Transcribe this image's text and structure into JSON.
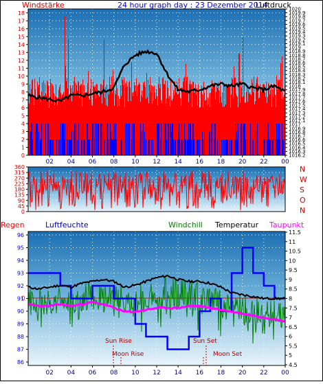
{
  "chart_data": [
    {
      "type": "line",
      "title": "24 hour graph day : 23 Dezember 2014",
      "left_axis_label": "Windstärke",
      "right_axis_label": "Luftdruck",
      "left_ticks": [
        "0",
        "1",
        "2",
        "3",
        "4",
        "5",
        "6",
        "7",
        "8",
        "9",
        "10",
        "11",
        "12",
        "13",
        "14",
        "15",
        "16",
        "17",
        "18"
      ],
      "right_ticks": [
        "1016.2",
        "1016.3",
        "1016.4",
        "1016.5",
        "1016.6",
        "1016.7",
        "1016.8",
        "1016.9",
        "1017",
        "1017.1",
        "1017.2",
        "1017.3",
        "1017.4",
        "1017.5",
        "1017.6",
        "1017.7",
        "1017.8",
        "1017.9",
        "1018",
        "1018.1",
        "1018.2",
        "1018.3",
        "1018.4",
        "1018.5",
        "1018.6",
        "1018.7",
        "1018.8",
        "1018.9",
        "1019",
        "1019.1",
        "1019.2",
        "1019.3",
        "1019.4",
        "1019.5",
        "1019.6",
        "1019.7",
        "1019.8",
        "1019.9",
        "1020"
      ],
      "x_ticks": [
        "02",
        "04",
        "06",
        "08",
        "10",
        "12",
        "14",
        "16",
        "18",
        "20",
        "22",
        "00"
      ],
      "ylim_left": [
        0,
        18.5
      ],
      "ylim_right": [
        1016.2,
        1020
      ],
      "series": [
        {
          "name": "Luftdruck",
          "color": "#000000",
          "axis": "right",
          "x": [
            0,
            1,
            2,
            3,
            4,
            5,
            6,
            7,
            8,
            9,
            10,
            11,
            12,
            13,
            14,
            15,
            16,
            17,
            18,
            19,
            20,
            21,
            22,
            23,
            24
          ],
          "values": [
            1017.75,
            1017.7,
            1017.65,
            1017.6,
            1017.75,
            1017.75,
            1017.8,
            1017.85,
            1017.95,
            1018.55,
            1018.8,
            1018.9,
            1018.85,
            1018.3,
            1017.9,
            1017.85,
            1017.9,
            1018.0,
            1018.05,
            1018.0,
            1018.05,
            1017.95,
            1017.9,
            1018.0,
            1017.85
          ]
        },
        {
          "name": "Windstärke Mittel",
          "color": "#0000ff",
          "axis": "left",
          "values": [
            3,
            4,
            2,
            4,
            3,
            2,
            4,
            3,
            2,
            4,
            3,
            2,
            4,
            3,
            4,
            2,
            3,
            4,
            2,
            3,
            4,
            3,
            2,
            4
          ]
        },
        {
          "name": "Windstärke Böen",
          "color": "#ff0000",
          "axis": "left",
          "values": [
            9,
            14,
            9,
            18,
            9,
            13,
            9,
            17,
            9,
            13,
            9,
            18,
            9,
            9,
            13,
            9,
            15,
            9,
            9,
            13,
            17,
            9,
            9,
            13
          ]
        }
      ],
      "grid": true
    },
    {
      "type": "bar",
      "right_label_letters": [
        "N",
        "W",
        "S",
        "O",
        "N"
      ],
      "left_ticks": [
        "0",
        "45",
        "90",
        "135",
        "180",
        "225",
        "270",
        "315",
        "360"
      ],
      "ylim": [
        0,
        360
      ],
      "series": [
        {
          "name": "Windrichtung",
          "color": "#ff0000"
        }
      ],
      "grid": true
    },
    {
      "type": "line",
      "legend": [
        "Regen",
        "Luftfeuchte",
        "Windchill",
        "Temperatur",
        "Taupunkt"
      ],
      "legend_colors": [
        "#ff0000",
        "#0000cc",
        "#008000",
        "#000000",
        "#ff00ff"
      ],
      "left_ticks": [
        "86",
        "87",
        "88",
        "89",
        "90",
        "91",
        "92",
        "93",
        "94",
        "95",
        "96"
      ],
      "right_ticks": [
        "4.5",
        "5",
        "5.5",
        "6",
        "6.5",
        "7",
        "7.5",
        "8",
        "8.5",
        "9",
        "9.5",
        "10",
        "10.5",
        "11",
        "11.5"
      ],
      "regen_value": "0",
      "x_ticks": [
        "02",
        "04",
        "06",
        "08",
        "10",
        "12",
        "14",
        "16",
        "18",
        "20",
        "22",
        "00"
      ],
      "ylim_left": [
        86,
        96
      ],
      "ylim_right": [
        4.5,
        11.5
      ],
      "annotations": {
        "sun_rise": "Sun Rise",
        "moon_rise": "Moon Rise",
        "sun_set": "Sun Set",
        "moon_set": "Moon Set"
      },
      "series": [
        {
          "name": "Luftfeuchte",
          "color": "#0000ff",
          "axis": "left",
          "x": [
            0,
            1,
            2,
            3,
            4,
            5,
            6,
            7,
            8,
            9,
            10,
            11,
            12,
            13,
            14,
            15,
            16,
            17,
            18,
            19,
            20,
            21,
            22,
            23,
            24
          ],
          "values": [
            93,
            93,
            93,
            92,
            91,
            91,
            92,
            92,
            91,
            91,
            89,
            88,
            88,
            87,
            87,
            88,
            90,
            91,
            90,
            93,
            95,
            93,
            92,
            91,
            91
          ]
        },
        {
          "name": "Temperatur",
          "color": "#000000",
          "axis": "right",
          "x": [
            0,
            1,
            2,
            3,
            4,
            5,
            6,
            7,
            8,
            9,
            10,
            11,
            12,
            13,
            14,
            15,
            16,
            17,
            18,
            19,
            20,
            21,
            22,
            23,
            24
          ],
          "values": [
            8.6,
            8.5,
            8.6,
            8.7,
            8.6,
            8.8,
            8.9,
            9.0,
            8.9,
            8.6,
            8.7,
            8.9,
            9.1,
            9.2,
            9.0,
            8.9,
            8.9,
            8.8,
            8.6,
            8.3,
            8.2,
            8.1,
            8.0,
            8.0,
            8.0
          ]
        },
        {
          "name": "Taupunkt",
          "color": "#ff00ff",
          "axis": "right",
          "x": [
            0,
            1,
            2,
            3,
            4,
            5,
            6,
            7,
            8,
            9,
            10,
            11,
            12,
            13,
            14,
            15,
            16,
            17,
            18,
            19,
            20,
            21,
            22,
            23,
            24
          ],
          "values": [
            7.7,
            7.6,
            7.6,
            7.7,
            7.6,
            7.7,
            7.8,
            7.7,
            7.5,
            7.3,
            7.3,
            7.4,
            7.5,
            7.5,
            7.5,
            7.6,
            7.6,
            7.5,
            7.4,
            7.3,
            7.2,
            7.1,
            7.0,
            6.9,
            6.8
          ]
        },
        {
          "name": "Windchill",
          "color": "#008000",
          "axis": "right"
        }
      ],
      "grid": true
    }
  ]
}
